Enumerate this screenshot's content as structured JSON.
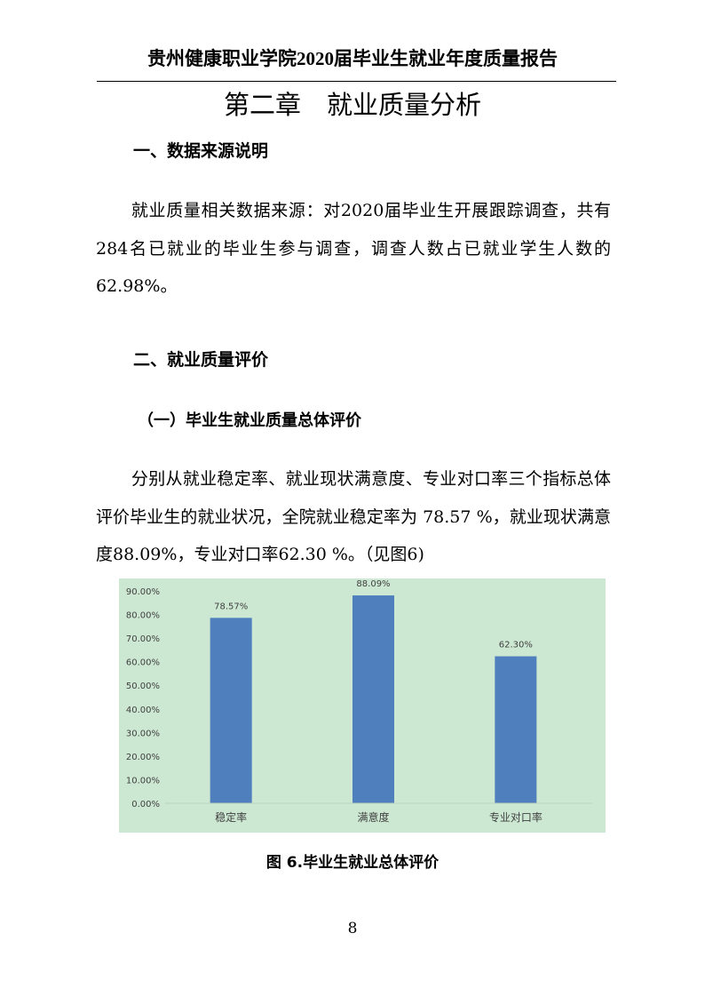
{
  "header": {
    "title": "贵州健康职业学院2020届毕业生就业年度质量报告"
  },
  "chapter": {
    "title": "第二章　就业质量分析"
  },
  "section1": {
    "heading": "一、数据来源说明",
    "paragraph": "就业质量相关数据来源：对2020届毕业生开展跟踪调查，共有284名已就业的毕业生参与调查，调查人数占已就业学生人数的62.98%。"
  },
  "section2": {
    "heading": "二、就业质量评价",
    "subheading": "（一）毕业生就业质量总体评价",
    "paragraph": "分别从就业稳定率、就业现状满意度、专业对口率三个指标总体评价毕业生的就业状况，全院就业稳定率为 78.57 %，就业现状满意度88.09%，专业对口率62.30 %。（见图6)"
  },
  "chart_data": {
    "type": "bar",
    "categories": [
      "稳定率",
      "满意度",
      "专业对口率"
    ],
    "values": [
      78.57,
      88.09,
      62.3
    ],
    "data_labels": [
      "78.57%",
      "88.09%",
      "62.30%"
    ],
    "yticks": [
      "0.00%",
      "10.00%",
      "20.00%",
      "30.00%",
      "40.00%",
      "50.00%",
      "60.00%",
      "70.00%",
      "80.00%",
      "90.00%"
    ],
    "ylim": [
      0,
      90
    ],
    "grid": false,
    "bar_color": "#4f7fbc",
    "background_color": "#cde8d2"
  },
  "caption": "图 6.毕业生就业总体评价",
  "page_number": "8"
}
